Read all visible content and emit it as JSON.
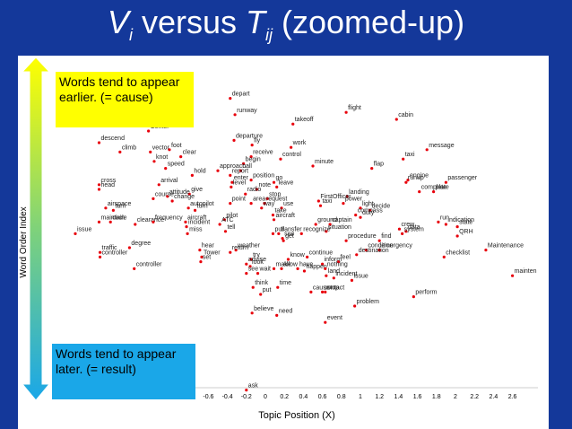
{
  "slide": {
    "title_v": "V",
    "title_v_sub": "i",
    "title_mid": " versus ",
    "title_t": "T",
    "title_t_sub": "ij",
    "title_tail": " (zoomed-up)"
  },
  "notes": {
    "earlier": "Words tend to appear earlier. (= cause)",
    "later": "Words tend to appear later. (= result)"
  },
  "colors": {
    "background": "#14389a",
    "point": "#e8000b",
    "note_earlier": "#ffff00",
    "note_later": "#1aa7e8",
    "arrow_top": "#ffff00",
    "arrow_bottom": "#1aa7e8"
  },
  "chart_data": {
    "type": "scatter",
    "xlabel": "Topic Position (X)",
    "ylabel": "Word Order Index",
    "xlim": [
      -2.0,
      2.7
    ],
    "ylim": [
      -1.0,
      1.0
    ],
    "x_ticks": [
      -0.8,
      -0.6,
      -0.4,
      -0.2,
      0,
      0.2,
      0.4,
      0.6,
      0.8,
      1,
      1.2,
      1.4,
      1.6,
      1.8,
      2,
      2.2,
      2.4,
      2.6
    ],
    "x_tick_labels": [
      "-0.8",
      "-0.6",
      "-0.4",
      "-0.2",
      "0",
      "0.2",
      "0.4",
      "0.6",
      "0.8",
      "1",
      "1.2",
      "1.4",
      "1.6",
      "1.8",
      "2",
      "2.2",
      "2.4",
      "2.6"
    ],
    "points": [
      {
        "label": "depart",
        "x": -0.37,
        "y": 0.84
      },
      {
        "label": "runway",
        "x": -0.32,
        "y": 0.77
      },
      {
        "label": "flight",
        "x": 0.85,
        "y": 0.78
      },
      {
        "label": "cabin",
        "x": 1.38,
        "y": 0.75
      },
      {
        "label": "takeoff",
        "x": 0.29,
        "y": 0.73
      },
      {
        "label": "Center",
        "x": -1.23,
        "y": 0.7
      },
      {
        "label": "descend",
        "x": -1.75,
        "y": 0.65
      },
      {
        "label": "departure",
        "x": -0.33,
        "y": 0.66
      },
      {
        "label": "fly",
        "x": -0.14,
        "y": 0.64
      },
      {
        "label": "work",
        "x": 0.27,
        "y": 0.63
      },
      {
        "label": "message",
        "x": 1.7,
        "y": 0.62
      },
      {
        "label": "climb",
        "x": -1.53,
        "y": 0.61
      },
      {
        "label": "foot",
        "x": -1.01,
        "y": 0.62
      },
      {
        "label": "vector",
        "x": -1.21,
        "y": 0.61
      },
      {
        "label": "receive",
        "x": -0.15,
        "y": 0.59
      },
      {
        "label": "control",
        "x": 0.16,
        "y": 0.58
      },
      {
        "label": "clear",
        "x": -0.89,
        "y": 0.59
      },
      {
        "label": "taxi",
        "x": 1.45,
        "y": 0.58
      },
      {
        "label": "knot",
        "x": -1.17,
        "y": 0.57
      },
      {
        "label": "begin",
        "x": -0.23,
        "y": 0.56
      },
      {
        "label": "minute",
        "x": 0.5,
        "y": 0.55
      },
      {
        "label": "flap",
        "x": 1.12,
        "y": 0.54
      },
      {
        "label": "speed",
        "x": -1.05,
        "y": 0.54
      },
      {
        "label": "call",
        "x": -0.26,
        "y": 0.53
      },
      {
        "label": "approach",
        "x": -0.5,
        "y": 0.53
      },
      {
        "label": "hold",
        "x": -0.77,
        "y": 0.51
      },
      {
        "label": "report",
        "x": -0.37,
        "y": 0.51
      },
      {
        "label": "engine",
        "x": 1.5,
        "y": 0.49
      },
      {
        "label": "runup",
        "x": 1.48,
        "y": 0.48
      },
      {
        "label": "position",
        "x": -0.15,
        "y": 0.49
      },
      {
        "label": "go",
        "x": 0.09,
        "y": 0.48
      },
      {
        "label": "passenger",
        "x": 1.9,
        "y": 0.48
      },
      {
        "label": "enter",
        "x": -0.35,
        "y": 0.48
      },
      {
        "label": "arrival",
        "x": -1.12,
        "y": 0.47
      },
      {
        "label": "cross",
        "x": -1.75,
        "y": 0.47
      },
      {
        "label": "level",
        "x": -0.36,
        "y": 0.46
      },
      {
        "label": "leave",
        "x": 0.12,
        "y": 0.46
      },
      {
        "label": "note",
        "x": -0.09,
        "y": 0.45
      },
      {
        "label": "complete",
        "x": 1.62,
        "y": 0.44
      },
      {
        "label": "plate",
        "x": 1.77,
        "y": 0.44
      },
      {
        "label": "head",
        "x": -1.75,
        "y": 0.45
      },
      {
        "label": "give",
        "x": -0.8,
        "y": 0.43
      },
      {
        "label": "radio",
        "x": -0.21,
        "y": 0.43
      },
      {
        "label": "attitude",
        "x": -1.03,
        "y": 0.42
      },
      {
        "label": "course",
        "x": -1.18,
        "y": 0.41
      },
      {
        "label": "stop",
        "x": 0.02,
        "y": 0.41
      },
      {
        "label": "landing",
        "x": 0.86,
        "y": 0.42
      },
      {
        "label": "change",
        "x": -0.98,
        "y": 0.4
      },
      {
        "label": "point",
        "x": -0.37,
        "y": 0.39
      },
      {
        "label": "area",
        "x": -0.15,
        "y": 0.39
      },
      {
        "label": "FirstOfficer",
        "x": 0.56,
        "y": 0.4
      },
      {
        "label": "request",
        "x": -0.01,
        "y": 0.39
      },
      {
        "label": "power",
        "x": 0.82,
        "y": 0.39
      },
      {
        "label": "taxi",
        "x": 0.58,
        "y": 0.38
      },
      {
        "label": "light",
        "x": 1.0,
        "y": 0.37
      },
      {
        "label": "airspace",
        "x": -1.68,
        "y": 0.37
      },
      {
        "label": "way",
        "x": -0.04,
        "y": 0.37
      },
      {
        "label": "use",
        "x": 0.17,
        "y": 0.37
      },
      {
        "label": "autopilot",
        "x": -0.81,
        "y": 0.37
      },
      {
        "label": "turn",
        "x": -1.6,
        "y": 0.36
      },
      {
        "label": "turn",
        "x": -0.74,
        "y": 0.36
      },
      {
        "label": "decide",
        "x": 1.1,
        "y": 0.36
      },
      {
        "label": "compass",
        "x": 0.95,
        "y": 0.34
      },
      {
        "label": "take",
        "x": 0.08,
        "y": 0.34
      },
      {
        "label": "duty",
        "x": 1.0,
        "y": 0.33
      },
      {
        "label": "pilot",
        "x": -0.43,
        "y": 0.32
      },
      {
        "label": "aircraft",
        "x": 0.09,
        "y": 0.32
      },
      {
        "label": "maintain",
        "x": -1.75,
        "y": 0.31
      },
      {
        "label": "circle",
        "x": -1.63,
        "y": 0.31
      },
      {
        "label": "clearance",
        "x": -1.37,
        "y": 0.3
      },
      {
        "label": "frequency",
        "x": -1.18,
        "y": 0.31
      },
      {
        "label": "aircraft",
        "x": -0.84,
        "y": 0.31
      },
      {
        "label": "ATC",
        "x": -0.48,
        "y": 0.3
      },
      {
        "label": "ground",
        "x": 0.53,
        "y": 0.3
      },
      {
        "label": "captain",
        "x": 0.68,
        "y": 0.3
      },
      {
        "label": "run",
        "x": 1.82,
        "y": 0.31
      },
      {
        "label": "indication",
        "x": 1.9,
        "y": 0.3
      },
      {
        "label": "state",
        "x": 2.02,
        "y": 0.29
      },
      {
        "label": "crew",
        "x": 1.41,
        "y": 0.28
      },
      {
        "label": "incident",
        "x": -0.83,
        "y": 0.29
      },
      {
        "label": "data",
        "x": 1.48,
        "y": 0.27
      },
      {
        "label": "system",
        "x": 1.44,
        "y": 0.26
      },
      {
        "label": "tell",
        "x": -0.42,
        "y": 0.27
      },
      {
        "label": "situation",
        "x": 0.64,
        "y": 0.27
      },
      {
        "label": "miss",
        "x": -0.82,
        "y": 0.26
      },
      {
        "label": "pull",
        "x": 0.08,
        "y": 0.26
      },
      {
        "label": "transfer",
        "x": 0.14,
        "y": 0.26
      },
      {
        "label": "recognize",
        "x": 0.38,
        "y": 0.26
      },
      {
        "label": "QRH",
        "x": 2.02,
        "y": 0.25
      },
      {
        "label": "issue",
        "x": -2.0,
        "y": 0.26
      },
      {
        "label": "see",
        "x": 0.18,
        "y": 0.24
      },
      {
        "label": "get",
        "x": 0.19,
        "y": 0.23
      },
      {
        "label": "procedure",
        "x": 0.85,
        "y": 0.23
      },
      {
        "label": "find",
        "x": 1.2,
        "y": 0.23
      },
      {
        "label": "degree",
        "x": -1.43,
        "y": 0.2
      },
      {
        "label": "hear",
        "x": -0.69,
        "y": 0.19
      },
      {
        "label": "weather",
        "x": -0.31,
        "y": 0.19
      },
      {
        "label": "condition",
        "x": 1.06,
        "y": 0.19
      },
      {
        "label": "emergency",
        "x": 1.2,
        "y": 0.19
      },
      {
        "label": "Maintenance",
        "x": 2.32,
        "y": 0.19
      },
      {
        "label": "traffic",
        "x": -1.74,
        "y": 0.18
      },
      {
        "label": "return",
        "x": -0.37,
        "y": 0.18
      },
      {
        "label": "destination",
        "x": 0.96,
        "y": 0.17
      },
      {
        "label": "controller",
        "x": -1.74,
        "y": 0.16
      },
      {
        "label": "checklist",
        "x": 1.88,
        "y": 0.16
      },
      {
        "label": "Tower",
        "x": -0.67,
        "y": 0.16
      },
      {
        "label": "continue",
        "x": 0.44,
        "y": 0.16
      },
      {
        "label": "try",
        "x": -0.15,
        "y": 0.15
      },
      {
        "label": "know",
        "x": 0.24,
        "y": 0.15
      },
      {
        "label": "feel",
        "x": 0.77,
        "y": 0.14
      },
      {
        "label": "set",
        "x": -0.68,
        "y": 0.14
      },
      {
        "label": "advise",
        "x": -0.2,
        "y": 0.13
      },
      {
        "label": "inform",
        "x": 0.6,
        "y": 0.13
      },
      {
        "label": "look",
        "x": -0.16,
        "y": 0.12
      },
      {
        "label": "make",
        "x": 0.09,
        "y": 0.11
      },
      {
        "label": "allow",
        "x": 0.17,
        "y": 0.11
      },
      {
        "label": "have",
        "x": 0.34,
        "y": 0.11
      },
      {
        "label": "happen",
        "x": 0.41,
        "y": 0.1
      },
      {
        "label": "nothing",
        "x": 0.63,
        "y": 0.11
      },
      {
        "label": "controller",
        "x": -1.38,
        "y": 0.11
      },
      {
        "label": "see",
        "x": -0.2,
        "y": 0.09
      },
      {
        "label": "wait",
        "x": -0.08,
        "y": 0.09
      },
      {
        "label": "land",
        "x": 0.64,
        "y": 0.08
      },
      {
        "label": "incident",
        "x": 0.72,
        "y": 0.07
      },
      {
        "label": "mainten",
        "x": 2.6,
        "y": 0.08
      },
      {
        "label": "issue",
        "x": 0.91,
        "y": 0.06
      },
      {
        "label": "think",
        "x": -0.13,
        "y": 0.03
      },
      {
        "label": "time",
        "x": 0.13,
        "y": 0.03
      },
      {
        "label": "cause",
        "x": 0.48,
        "y": 0.01
      },
      {
        "label": "contact",
        "x": 0.6,
        "y": 0.01
      },
      {
        "label": "stop",
        "x": 0.63,
        "y": 0.01
      },
      {
        "label": "put",
        "x": -0.05,
        "y": 0.0
      },
      {
        "label": "perform",
        "x": 1.56,
        "y": -0.01
      },
      {
        "label": "problem",
        "x": 0.94,
        "y": -0.05
      },
      {
        "label": "believe",
        "x": -0.14,
        "y": -0.08
      },
      {
        "label": "need",
        "x": 0.12,
        "y": -0.09
      },
      {
        "label": "event",
        "x": 0.63,
        "y": -0.12
      },
      {
        "label": "ask",
        "x": -0.2,
        "y": -0.41
      }
    ]
  }
}
